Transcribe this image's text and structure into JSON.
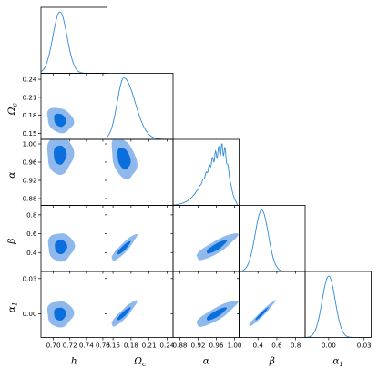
{
  "chart_data": {
    "type": "corner",
    "parameters": [
      {
        "id": "h",
        "label": "h",
        "sub": "",
        "range": [
          0.685,
          0.765
        ],
        "ticks": [
          0.7,
          0.72,
          0.74,
          0.76
        ],
        "tick_labels": [
          "0.70",
          "0.72",
          "0.74",
          "0.76"
        ],
        "mean": 0.708,
        "sigma": 0.0085,
        "skew": 0
      },
      {
        "id": "omega_c",
        "label": "Ω",
        "sub": "c",
        "range": [
          0.14,
          0.25
        ],
        "ticks": [
          0.15,
          0.18,
          0.21,
          0.24
        ],
        "tick_labels": [
          "0.15",
          "0.18",
          "0.21",
          "0.24"
        ],
        "mean": 0.168,
        "sigma": 0.011,
        "skew": 1
      },
      {
        "id": "alpha",
        "label": "α",
        "sub": "",
        "range": [
          0.865,
          1.01
        ],
        "ticks": [
          0.88,
          0.92,
          0.96,
          1.0
        ],
        "tick_labels": [
          "0.88",
          "0.92",
          "0.96",
          "1.00"
        ],
        "mean": 0.975,
        "sigma": 0.022,
        "skew": -1
      },
      {
        "id": "beta",
        "label": "β",
        "sub": "",
        "range": [
          0.2,
          0.9
        ],
        "ticks": [
          0.4,
          0.6,
          0.8
        ],
        "tick_labels": [
          "0.4",
          "0.6",
          "0.8"
        ],
        "mean": 0.44,
        "sigma": 0.07,
        "skew": 0
      },
      {
        "id": "alpha1",
        "label": "α",
        "sub": "1",
        "range": [
          -0.02,
          0.036
        ],
        "ticks": [
          0.0,
          0.03
        ],
        "tick_labels": [
          "0.00",
          "0.03"
        ],
        "mean": 0.0,
        "sigma": 0.0055,
        "skew": 0
      }
    ],
    "contours": [
      {
        "x": "h",
        "y": "omega_c",
        "cx": 0.708,
        "cy": 0.172,
        "c68": [
          0.0074,
          0.011,
          -0.2
        ],
        "c95": [
          0.016,
          0.021,
          -0.2
        ]
      },
      {
        "x": "h",
        "y": "alpha",
        "cx": 0.708,
        "cy": 0.976,
        "c68": [
          0.0078,
          0.021,
          0
        ],
        "c95": [
          0.016,
          0.042,
          0
        ]
      },
      {
        "x": "omega_c",
        "y": "alpha",
        "cx": 0.168,
        "cy": 0.968,
        "c68": [
          0.011,
          0.024,
          -0.3
        ],
        "c95": [
          0.021,
          0.045,
          -0.35
        ]
      },
      {
        "x": "h",
        "y": "beta",
        "cx": 0.709,
        "cy": 0.46,
        "c68": [
          0.0075,
          0.075,
          0
        ],
        "c95": [
          0.016,
          0.15,
          0
        ]
      },
      {
        "x": "omega_c",
        "y": "beta",
        "cx": 0.168,
        "cy": 0.45,
        "c68": [
          0.011,
          0.07,
          0.9
        ],
        "c95": [
          0.021,
          0.14,
          0.9
        ]
      },
      {
        "x": "alpha",
        "y": "beta",
        "cx": 0.96,
        "cy": 0.46,
        "c68": [
          0.022,
          0.07,
          0.85
        ],
        "c95": [
          0.045,
          0.14,
          0.85
        ]
      },
      {
        "x": "h",
        "y": "alpha1",
        "cx": 0.708,
        "cy": 0.0,
        "c68": [
          0.0075,
          0.0055,
          0
        ],
        "c95": [
          0.016,
          0.011,
          0
        ]
      },
      {
        "x": "omega_c",
        "y": "alpha1",
        "cx": 0.168,
        "cy": 0.0,
        "c68": [
          0.011,
          0.0055,
          0.9
        ],
        "c95": [
          0.021,
          0.011,
          0.9
        ]
      },
      {
        "x": "alpha",
        "y": "alpha1",
        "cx": 0.96,
        "cy": 0.0,
        "c68": [
          0.022,
          0.0055,
          0.85
        ],
        "c95": [
          0.045,
          0.011,
          0.85
        ]
      },
      {
        "x": "beta",
        "y": "alpha1",
        "cx": 0.44,
        "cy": 0.0,
        "c68": [
          0.07,
          0.0055,
          0.97
        ],
        "c95": [
          0.14,
          0.011,
          0.97
        ]
      }
    ],
    "grid": false,
    "colors": {
      "contour_68": "#0a6fdc",
      "contour_95": "#8fb9ec",
      "marginal_line": "#2f8ad8"
    }
  }
}
